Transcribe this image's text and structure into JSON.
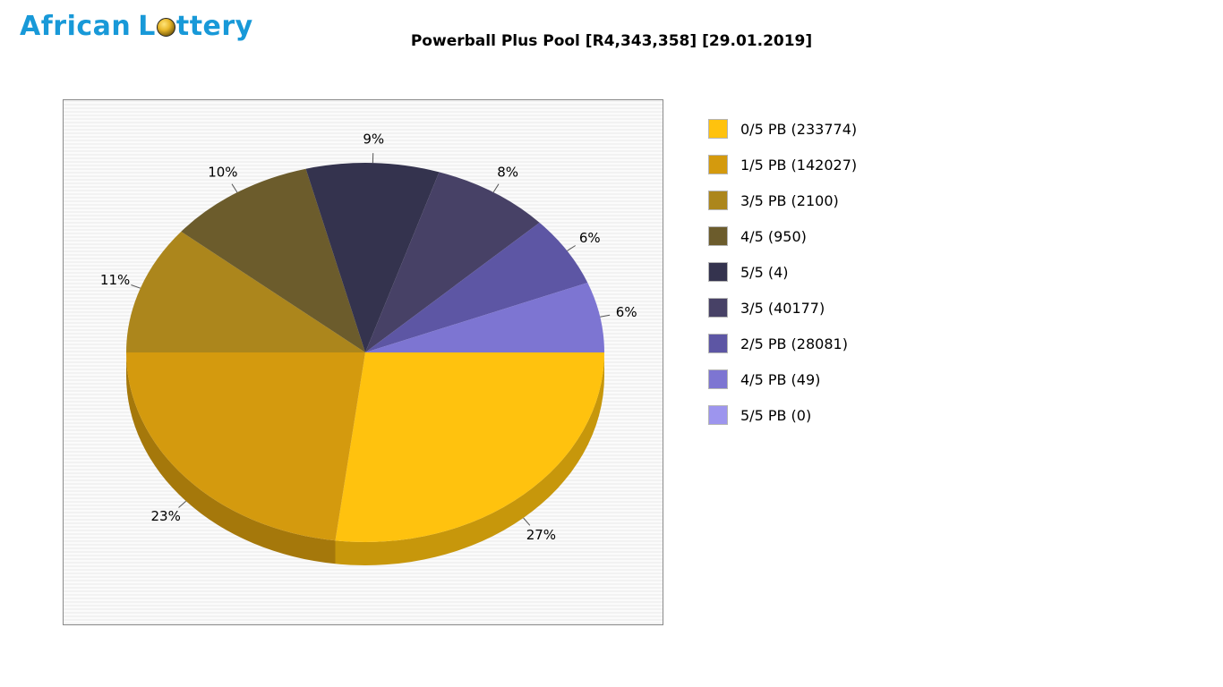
{
  "logo": {
    "part1": "African",
    "part2_pre": "L",
    "part2_post": "ttery"
  },
  "header": {
    "title": "Powerball Plus Pool [R4,343,358] [29.01.2019]"
  },
  "chart_data": {
    "type": "pie",
    "style": "3d",
    "title": "Powerball Plus Pool [R4,343,358] [29.01.2019]",
    "start_angle_deg": 0,
    "direction": "clockwise",
    "legend_position": "right",
    "labels_show": "percent",
    "slices": [
      {
        "label": "0/5 PB (233774)",
        "count": 233774,
        "percent": 27,
        "color": "#FFC20E"
      },
      {
        "label": "1/5 PB (142027)",
        "count": 142027,
        "percent": 23,
        "color": "#D49A0E"
      },
      {
        "label": "3/5 PB (2100)",
        "count": 2100,
        "percent": 11,
        "color": "#AC861C"
      },
      {
        "label": "4/5 (950)",
        "count": 950,
        "percent": 10,
        "color": "#6C5C2C"
      },
      {
        "label": "5/5 (4)",
        "count": 4,
        "percent": 9,
        "color": "#34334E"
      },
      {
        "label": "3/5 (40177)",
        "count": 40177,
        "percent": 8,
        "color": "#474166"
      },
      {
        "label": "2/5 PB (28081)",
        "count": 28081,
        "percent": 6,
        "color": "#5D56A4"
      },
      {
        "label": "4/5 PB (49)",
        "count": 49,
        "percent": 6,
        "color": "#7D75D2"
      },
      {
        "label": "5/5 PB (0)",
        "count": 0,
        "percent": 0,
        "color": "#9D95EE"
      }
    ]
  }
}
